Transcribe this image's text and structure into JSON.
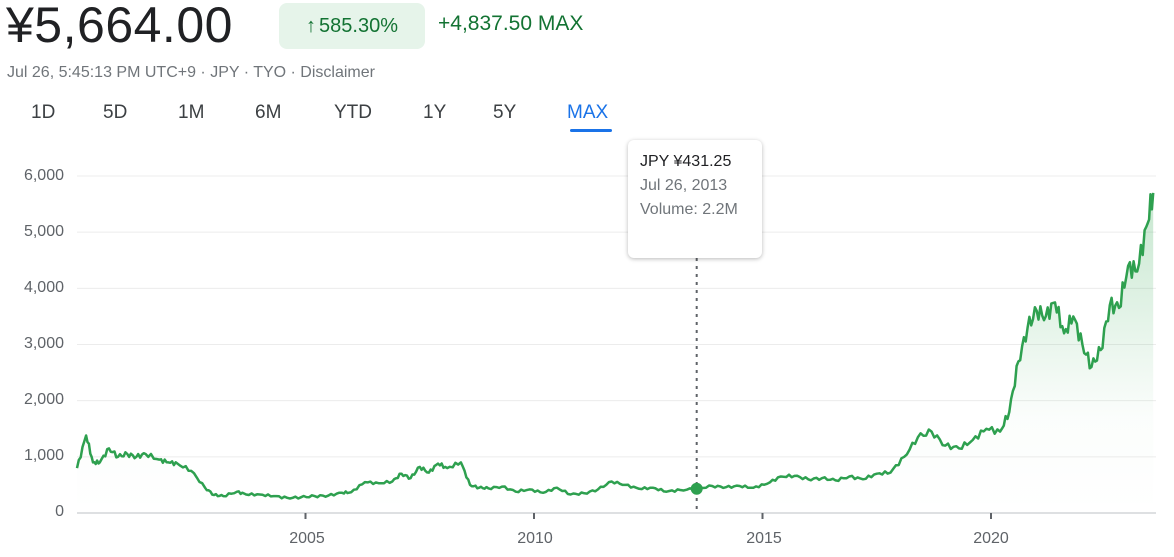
{
  "header": {
    "price": "¥5,664.00",
    "change_percent": "585.30%",
    "change_direction_icon": "arrow-up-icon",
    "change_amount": "+4,837.50",
    "change_period": "MAX",
    "subtitle": "Jul 26, 5:45:13 PM UTC+9 · JPY · TYO · Disclaimer",
    "colors": {
      "positive": "#137333",
      "badge_bg": "#e6f4ea",
      "line": "#2ea04f",
      "active_tab": "#1a73e8"
    }
  },
  "tabs": [
    {
      "label": "1D",
      "active": false
    },
    {
      "label": "5D",
      "active": false
    },
    {
      "label": "1M",
      "active": false
    },
    {
      "label": "6M",
      "active": false
    },
    {
      "label": "YTD",
      "active": false
    },
    {
      "label": "1Y",
      "active": false
    },
    {
      "label": "5Y",
      "active": false
    },
    {
      "label": "MAX",
      "active": true
    }
  ],
  "tooltip": {
    "price": "JPY ¥431.25",
    "date": "Jul 26, 2013",
    "volume": "Volume: 2.2M"
  },
  "chart_data": {
    "type": "area",
    "title": "",
    "xlabel": "",
    "ylabel": "",
    "currency": "JPY",
    "ylim": [
      0,
      6000
    ],
    "yticks": [
      "0",
      "1,000",
      "2,000",
      "3,000",
      "4,000",
      "5,000",
      "6,000"
    ],
    "xticks": [
      "2005",
      "2010",
      "2015",
      "2020"
    ],
    "grid": true,
    "legend": "none",
    "hover_point": {
      "x": 2013.56,
      "y": 431.25,
      "label": "Jul 26, 2013"
    },
    "series": [
      {
        "name": "Price",
        "x": [
          2000.0,
          2000.2,
          2000.35,
          2000.5,
          2000.7,
          2000.9,
          2001.1,
          2001.3,
          2001.5,
          2001.8,
          2002.0,
          2002.2,
          2002.5,
          2002.8,
          2003.0,
          2003.2,
          2003.5,
          2003.7,
          2004.0,
          2004.3,
          2004.6,
          2004.9,
          2005.2,
          2005.5,
          2005.8,
          2006.0,
          2006.3,
          2006.6,
          2006.9,
          2007.1,
          2007.3,
          2007.5,
          2007.7,
          2007.9,
          2008.1,
          2008.4,
          2008.6,
          2008.8,
          2009.0,
          2009.3,
          2009.6,
          2009.9,
          2010.2,
          2010.5,
          2010.8,
          2011.1,
          2011.4,
          2011.7,
          2012.0,
          2012.3,
          2012.6,
          2012.9,
          2013.2,
          2013.56,
          2013.9,
          2014.2,
          2014.5,
          2014.8,
          2015.1,
          2015.4,
          2015.7,
          2016.0,
          2016.3,
          2016.6,
          2016.9,
          2017.2,
          2017.5,
          2017.8,
          2018.1,
          2018.4,
          2018.7,
          2019.0,
          2019.3,
          2019.6,
          2019.9,
          2020.2,
          2020.4,
          2020.6,
          2020.8,
          2021.0,
          2021.2,
          2021.4,
          2021.6,
          2021.8,
          2022.0,
          2022.2,
          2022.4,
          2022.6,
          2022.8,
          2023.0,
          2023.2,
          2023.4,
          2023.55
        ],
        "values": [
          800,
          1380,
          900,
          900,
          1150,
          1000,
          1050,
          1000,
          1050,
          950,
          900,
          880,
          750,
          450,
          320,
          300,
          380,
          330,
          330,
          300,
          270,
          280,
          300,
          310,
          360,
          370,
          550,
          530,
          560,
          700,
          620,
          820,
          720,
          880,
          800,
          900,
          500,
          450,
          440,
          470,
          380,
          420,
          360,
          450,
          330,
          350,
          420,
          560,
          500,
          430,
          450,
          380,
          410,
          431,
          480,
          460,
          480,
          450,
          520,
          650,
          660,
          600,
          620,
          580,
          650,
          600,
          700,
          720,
          1000,
          1350,
          1450,
          1200,
          1150,
          1300,
          1500,
          1450,
          1800,
          2700,
          3300,
          3600,
          3500,
          3750,
          3200,
          3500,
          3000,
          2600,
          2900,
          3700,
          3650,
          4400,
          4300,
          5100,
          5700
        ]
      }
    ]
  }
}
